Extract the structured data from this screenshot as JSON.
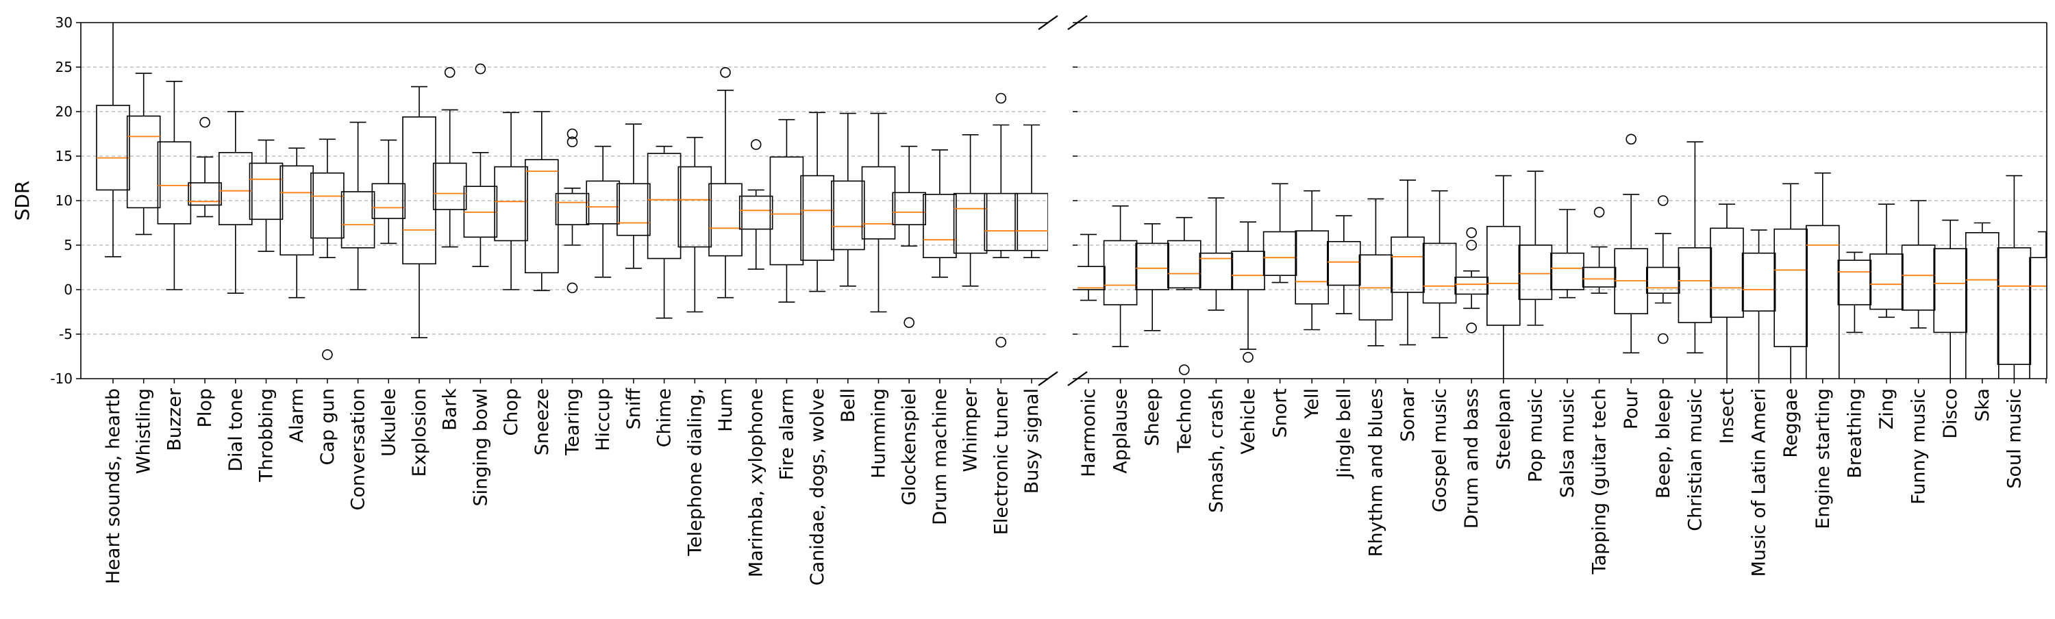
{
  "chart_data": {
    "type": "box",
    "ylabel": "SDR",
    "ylim": [
      -10,
      30
    ],
    "yticks": [
      -10,
      -5,
      0,
      5,
      10,
      15,
      20,
      25,
      30
    ],
    "grid_y": true,
    "broken_x_axis": true,
    "colors": {
      "box": "#000000",
      "median": "#ff7f0e",
      "grid": "#b0b0b0"
    },
    "panels": [
      {
        "categories": [
          {
            "label": "Heart sounds, heartb",
            "whislo": 3.7,
            "q1": 11.2,
            "med": 14.8,
            "q3": 20.7,
            "whishi": 31,
            "fliers": []
          },
          {
            "label": "Whistling",
            "whislo": 6.2,
            "q1": 9.2,
            "med": 17.2,
            "q3": 19.5,
            "whishi": 24.3,
            "fliers": []
          },
          {
            "label": "Buzzer",
            "whislo": 0.0,
            "q1": 7.4,
            "med": 11.7,
            "q3": 16.6,
            "whishi": 23.4,
            "fliers": []
          },
          {
            "label": "Plop",
            "whislo": 8.2,
            "q1": 9.5,
            "med": 9.9,
            "q3": 12.0,
            "whishi": 14.9,
            "fliers": [
              18.8
            ]
          },
          {
            "label": "Dial tone",
            "whislo": -0.4,
            "q1": 7.3,
            "med": 11.1,
            "q3": 15.4,
            "whishi": 20.0,
            "fliers": []
          },
          {
            "label": "Throbbing",
            "whislo": 4.3,
            "q1": 7.9,
            "med": 12.4,
            "q3": 14.2,
            "whishi": 16.8,
            "fliers": []
          },
          {
            "label": "Alarm",
            "whislo": -0.9,
            "q1": 3.9,
            "med": 10.9,
            "q3": 13.9,
            "whishi": 15.9,
            "fliers": []
          },
          {
            "label": "Cap gun",
            "whislo": 3.6,
            "q1": 5.8,
            "med": 10.5,
            "q3": 13.1,
            "whishi": 16.9,
            "fliers": [
              -7.3
            ]
          },
          {
            "label": "Conversation",
            "whislo": 0.0,
            "q1": 4.7,
            "med": 7.3,
            "q3": 11.0,
            "whishi": 18.8,
            "fliers": []
          },
          {
            "label": "Ukulele",
            "whislo": 5.2,
            "q1": 8.0,
            "med": 9.2,
            "q3": 11.9,
            "whishi": 16.8,
            "fliers": []
          },
          {
            "label": "Explosion",
            "whislo": -5.4,
            "q1": 2.9,
            "med": 6.7,
            "q3": 19.4,
            "whishi": 22.8,
            "fliers": []
          },
          {
            "label": "Bark",
            "whislo": 4.8,
            "q1": 9.0,
            "med": 10.8,
            "q3": 14.2,
            "whishi": 20.2,
            "fliers": [
              24.4
            ]
          },
          {
            "label": "Singing bowl",
            "whislo": 2.6,
            "q1": 5.9,
            "med": 8.7,
            "q3": 11.6,
            "whishi": 15.4,
            "fliers": [
              24.8
            ]
          },
          {
            "label": "Chop",
            "whislo": 0.0,
            "q1": 5.5,
            "med": 9.9,
            "q3": 13.8,
            "whishi": 19.9,
            "fliers": []
          },
          {
            "label": "Sneeze",
            "whislo": -0.1,
            "q1": 1.9,
            "med": 13.3,
            "q3": 14.6,
            "whishi": 20.0,
            "fliers": []
          },
          {
            "label": "Tearing",
            "whislo": 5.0,
            "q1": 7.3,
            "med": 9.8,
            "q3": 10.8,
            "whishi": 11.4,
            "fliers": [
              17.5,
              16.6,
              0.2
            ]
          },
          {
            "label": "Hiccup",
            "whislo": 1.4,
            "q1": 7.4,
            "med": 9.3,
            "q3": 12.2,
            "whishi": 16.1,
            "fliers": []
          },
          {
            "label": "Sniff",
            "whislo": 2.4,
            "q1": 6.1,
            "med": 7.5,
            "q3": 11.9,
            "whishi": 18.6,
            "fliers": []
          },
          {
            "label": "Chime",
            "whislo": -3.2,
            "q1": 3.5,
            "med": 10.1,
            "q3": 15.3,
            "whishi": 16.1,
            "fliers": []
          },
          {
            "label": "Telephone dialing,",
            "whislo": -2.5,
            "q1": 4.8,
            "med": 10.1,
            "q3": 13.8,
            "whishi": 17.1,
            "fliers": []
          },
          {
            "label": "Hum",
            "whislo": -0.9,
            "q1": 3.8,
            "med": 6.9,
            "q3": 11.9,
            "whishi": 22.4,
            "fliers": [
              24.4
            ]
          },
          {
            "label": "Marimba, xylophone",
            "whislo": 2.3,
            "q1": 6.8,
            "med": 8.9,
            "q3": 10.5,
            "whishi": 11.2,
            "fliers": [
              16.3
            ]
          },
          {
            "label": "Fire alarm",
            "whislo": -1.4,
            "q1": 2.8,
            "med": 8.5,
            "q3": 14.9,
            "whishi": 19.1,
            "fliers": []
          },
          {
            "label": "Canidae, dogs, wolve",
            "whislo": -0.2,
            "q1": 3.3,
            "med": 8.9,
            "q3": 12.8,
            "whishi": 19.9,
            "fliers": []
          },
          {
            "label": "Bell",
            "whislo": 0.4,
            "q1": 4.5,
            "med": 7.1,
            "q3": 12.2,
            "whishi": 19.8,
            "fliers": []
          },
          {
            "label": "Humming",
            "whislo": -2.5,
            "q1": 5.7,
            "med": 7.4,
            "q3": 13.8,
            "whishi": 19.8,
            "fliers": []
          },
          {
            "label": "Glockenspiel",
            "whislo": 4.9,
            "q1": 7.3,
            "med": 8.7,
            "q3": 10.9,
            "whishi": 16.1,
            "fliers": [
              -3.7
            ]
          },
          {
            "label": "Drum machine",
            "whislo": 1.4,
            "q1": 3.6,
            "med": 5.6,
            "q3": 10.7,
            "whishi": 15.7,
            "fliers": []
          },
          {
            "label": "Whimper",
            "whislo": 0.4,
            "q1": 4.1,
            "med": 9.1,
            "q3": 10.8,
            "whishi": 17.4,
            "fliers": []
          },
          {
            "label": "Electronic tuner",
            "whislo": 3.6,
            "q1": 4.4,
            "med": 6.6,
            "q3": 10.8,
            "whishi": 18.5,
            "fliers": [
              21.5,
              -5.9
            ]
          },
          {
            "label": "Busy signal",
            "whislo": 3.6,
            "q1": 4.4,
            "med": 6.6,
            "q3": 10.8,
            "whishi": 18.5,
            "fliers": []
          }
        ]
      },
      {
        "categories": [
          {
            "label": "Harmonic",
            "whislo": -1.2,
            "q1": 0.0,
            "med": 0.2,
            "q3": 2.6,
            "whishi": 6.2,
            "fliers": []
          },
          {
            "label": "Applause",
            "whislo": -6.4,
            "q1": -1.7,
            "med": 0.5,
            "q3": 5.5,
            "whishi": 9.4,
            "fliers": []
          },
          {
            "label": "Sheep",
            "whislo": -4.6,
            "q1": 0.0,
            "med": 2.4,
            "q3": 5.2,
            "whishi": 7.4,
            "fliers": []
          },
          {
            "label": "Techno",
            "whislo": 0.0,
            "q1": 0.2,
            "med": 1.8,
            "q3": 5.5,
            "whishi": 8.1,
            "fliers": [
              -9.0
            ]
          },
          {
            "label": "Smash, crash",
            "whislo": -2.3,
            "q1": 0.0,
            "med": 3.5,
            "q3": 4.1,
            "whishi": 10.3,
            "fliers": []
          },
          {
            "label": "Vehicle",
            "whislo": -6.7,
            "q1": 0.0,
            "med": 1.6,
            "q3": 4.3,
            "whishi": 7.6,
            "fliers": [
              -7.6
            ]
          },
          {
            "label": "Snort",
            "whislo": 0.8,
            "q1": 1.6,
            "med": 3.6,
            "q3": 6.5,
            "whishi": 11.9,
            "fliers": []
          },
          {
            "label": "Yell",
            "whislo": -4.5,
            "q1": -1.6,
            "med": 0.9,
            "q3": 6.6,
            "whishi": 11.1,
            "fliers": []
          },
          {
            "label": "Jingle bell",
            "whislo": -2.7,
            "q1": 0.5,
            "med": 3.1,
            "q3": 5.4,
            "whishi": 8.3,
            "fliers": []
          },
          {
            "label": "Rhythm and blues",
            "whislo": -6.3,
            "q1": -3.4,
            "med": 0.2,
            "q3": 3.9,
            "whishi": 10.2,
            "fliers": []
          },
          {
            "label": "Sonar",
            "whislo": -6.2,
            "q1": -0.3,
            "med": 3.7,
            "q3": 5.9,
            "whishi": 12.3,
            "fliers": []
          },
          {
            "label": "Gospel music",
            "whislo": -5.4,
            "q1": -1.5,
            "med": 0.4,
            "q3": 5.2,
            "whishi": 11.1,
            "fliers": []
          },
          {
            "label": "Drum and bass",
            "whislo": -2.1,
            "q1": -0.5,
            "med": 0.6,
            "q3": 1.4,
            "whishi": 2.1,
            "fliers": [
              6.4,
              5.0,
              -4.3
            ]
          },
          {
            "label": "Steelpan",
            "whislo": -10.5,
            "q1": -4.0,
            "med": 0.7,
            "q3": 7.1,
            "whishi": 12.8,
            "fliers": []
          },
          {
            "label": "Pop music",
            "whislo": -4.0,
            "q1": -1.1,
            "med": 1.8,
            "q3": 5.0,
            "whishi": 13.3,
            "fliers": []
          },
          {
            "label": "Salsa music",
            "whislo": -0.9,
            "q1": 0.0,
            "med": 2.4,
            "q3": 4.1,
            "whishi": 9.0,
            "fliers": []
          },
          {
            "label": "Tapping (guitar tech",
            "whislo": -0.4,
            "q1": 0.3,
            "med": 1.2,
            "q3": 2.5,
            "whishi": 4.8,
            "fliers": [
              8.7
            ]
          },
          {
            "label": "Pour",
            "whislo": -7.1,
            "q1": -2.7,
            "med": 1.0,
            "q3": 4.6,
            "whishi": 10.7,
            "fliers": [
              16.9
            ]
          },
          {
            "label": "Beep, bleep",
            "whislo": -1.5,
            "q1": -0.4,
            "med": 0.2,
            "q3": 2.5,
            "whishi": 6.3,
            "fliers": [
              10.0,
              -5.5
            ]
          },
          {
            "label": "Christian music",
            "whislo": -7.1,
            "q1": -3.7,
            "med": 1.0,
            "q3": 4.7,
            "whishi": 16.6,
            "fliers": []
          },
          {
            "label": "Insect",
            "whislo": -10.5,
            "q1": -3.1,
            "med": 0.2,
            "q3": 6.9,
            "whishi": 9.6,
            "fliers": []
          },
          {
            "label": "Music of Latin Ameri",
            "whislo": -10.5,
            "q1": -2.4,
            "med": 0.0,
            "q3": 4.1,
            "whishi": 6.7,
            "fliers": []
          },
          {
            "label": "Reggae",
            "whislo": -10.5,
            "q1": -6.4,
            "med": 2.2,
            "q3": 6.8,
            "whishi": 11.9,
            "fliers": []
          },
          {
            "label": "Engine starting",
            "whislo": -10.5,
            "q1": -10.5,
            "med": 5.0,
            "q3": 7.2,
            "whishi": 13.1,
            "fliers": []
          },
          {
            "label": "Breathing",
            "whislo": -4.8,
            "q1": -1.7,
            "med": 2.0,
            "q3": 3.3,
            "whishi": 4.2,
            "fliers": []
          },
          {
            "label": "Zing",
            "whislo": -3.1,
            "q1": -2.2,
            "med": 0.6,
            "q3": 4.0,
            "whishi": 9.6,
            "fliers": []
          },
          {
            "label": "Funny music",
            "whislo": -4.3,
            "q1": -2.3,
            "med": 1.6,
            "q3": 5.0,
            "whishi": 10.0,
            "fliers": []
          },
          {
            "label": "Disco",
            "whislo": -10.5,
            "q1": -4.8,
            "med": 0.7,
            "q3": 4.6,
            "whishi": 7.8,
            "fliers": []
          },
          {
            "label": "Ska",
            "whislo": -10.5,
            "q1": -10.5,
            "med": 1.1,
            "q3": 6.4,
            "whishi": 7.5,
            "fliers": []
          },
          {
            "label": "Soul music",
            "whislo": -10.5,
            "q1": -8.4,
            "med": 0.4,
            "q3": 4.7,
            "whishi": 12.8,
            "fliers": []
          },
          {
            "label": "",
            "whislo": -10.5,
            "q1": -10.5,
            "med": 0.4,
            "q3": 3.6,
            "whishi": 6.5,
            "fliers": []
          }
        ]
      }
    ]
  }
}
